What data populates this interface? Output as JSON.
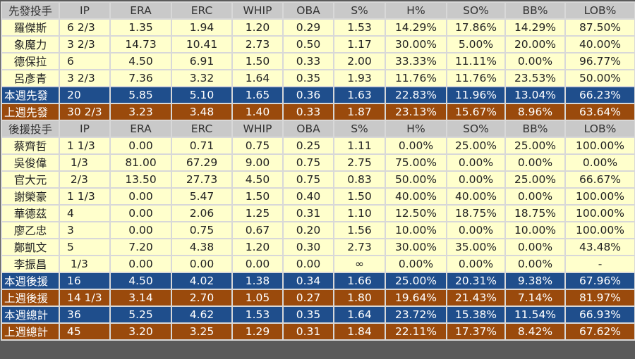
{
  "columns": [
    "IP",
    "ERA",
    "ERC",
    "WHIP",
    "OBA",
    "S%",
    "H%",
    "SO%",
    "BB%",
    "LOB%"
  ],
  "colors": {
    "header": "#c9c9c9",
    "row": "#ffffcc",
    "this_week": "#1f4e8c",
    "last_week": "#9a4a0c"
  },
  "sections": [
    {
      "title": "先發投手",
      "players": [
        [
          "羅傑斯",
          "6 2/3",
          "1.35",
          "1.94",
          "1.20",
          "0.29",
          "1.53",
          "14.29%",
          "17.86%",
          "14.29%",
          "87.50%"
        ],
        [
          "象魔力",
          "3 2/3",
          "14.73",
          "10.41",
          "2.73",
          "0.50",
          "1.17",
          "30.00%",
          "5.00%",
          "20.00%",
          "40.00%"
        ],
        [
          "德保拉",
          "6",
          "4.50",
          "6.91",
          "1.50",
          "0.33",
          "2.00",
          "33.33%",
          "11.11%",
          "0.00%",
          "96.77%"
        ],
        [
          "呂彥青",
          "3 2/3",
          "7.36",
          "3.32",
          "1.64",
          "0.35",
          "1.93",
          "11.76%",
          "11.76%",
          "23.53%",
          "50.00%"
        ]
      ],
      "totals": [
        {
          "type": "cur",
          "cells": [
            "本週先發",
            "20",
            "5.85",
            "5.10",
            "1.65",
            "0.36",
            "1.63",
            "22.83%",
            "11.96%",
            "13.04%",
            "66.23%"
          ]
        },
        {
          "type": "prev",
          "cells": [
            "上週先發",
            "30 2/3",
            "3.23",
            "3.48",
            "1.40",
            "0.33",
            "1.87",
            "23.13%",
            "15.67%",
            "8.96%",
            "63.64%"
          ]
        }
      ]
    },
    {
      "title": "後援投手",
      "players": [
        [
          "蔡齊哲",
          "1 1/3",
          "0.00",
          "0.71",
          "0.75",
          "0.25",
          "1.11",
          "0.00%",
          "25.00%",
          "25.00%",
          "100.00%"
        ],
        [
          "吳俊偉",
          " 1/3",
          "81.00",
          "67.29",
          "9.00",
          "0.75",
          "2.75",
          "75.00%",
          "0.00%",
          "0.00%",
          "0.00%"
        ],
        [
          "官大元",
          " 2/3",
          "13.50",
          "27.73",
          "4.50",
          "0.75",
          "0.83",
          "50.00%",
          "0.00%",
          "25.00%",
          "66.67%"
        ],
        [
          "謝榮豪",
          "1 1/3",
          "0.00",
          "5.47",
          "1.50",
          "0.40",
          "1.50",
          "40.00%",
          "40.00%",
          "0.00%",
          "100.00%"
        ],
        [
          "華德茲",
          "4",
          "0.00",
          "2.06",
          "1.25",
          "0.31",
          "1.10",
          "12.50%",
          "18.75%",
          "18.75%",
          "100.00%"
        ],
        [
          "廖乙忠",
          "3",
          "0.00",
          "0.75",
          "0.67",
          "0.20",
          "1.56",
          "10.00%",
          "0.00%",
          "10.00%",
          "100.00%"
        ],
        [
          "鄭凱文",
          "5",
          "7.20",
          "4.38",
          "1.20",
          "0.30",
          "2.73",
          "30.00%",
          "35.00%",
          "0.00%",
          "43.48%"
        ],
        [
          "李振昌",
          " 1/3",
          "0.00",
          "0.00",
          "0.00",
          "0.00",
          "∞",
          "0.00%",
          "0.00%",
          "0.00%",
          "-"
        ]
      ],
      "totals": [
        {
          "type": "cur",
          "cells": [
            "本週後援",
            "16",
            "4.50",
            "4.02",
            "1.38",
            "0.34",
            "1.66",
            "25.00%",
            "20.31%",
            "9.38%",
            "67.96%"
          ]
        },
        {
          "type": "prev",
          "cells": [
            "上週後援",
            "14 1/3",
            "3.14",
            "2.70",
            "1.05",
            "0.27",
            "1.80",
            "19.64%",
            "21.43%",
            "7.14%",
            "81.97%"
          ]
        },
        {
          "type": "cur",
          "cells": [
            "本週總計",
            "36",
            "5.25",
            "4.62",
            "1.53",
            "0.35",
            "1.64",
            "23.72%",
            "15.38%",
            "11.54%",
            "66.93%"
          ]
        },
        {
          "type": "prev",
          "cells": [
            "上週總計",
            "45",
            "3.20",
            "3.25",
            "1.29",
            "0.31",
            "1.84",
            "22.11%",
            "17.37%",
            "8.42%",
            "67.62%"
          ]
        }
      ]
    }
  ]
}
